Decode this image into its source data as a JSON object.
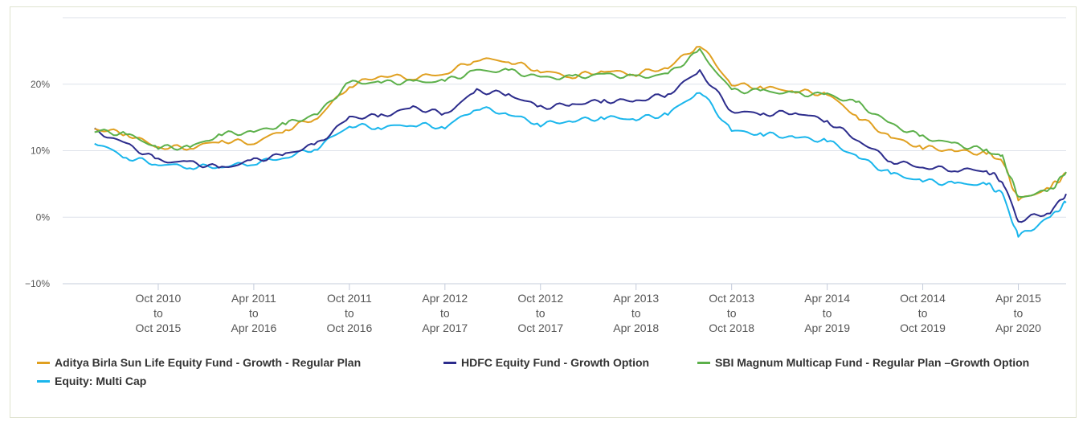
{
  "chart_data": {
    "type": "line",
    "yticks": [
      "−10%",
      "0%",
      "10%",
      "20%"
    ],
    "ylim": [
      -10,
      30
    ],
    "grid": true,
    "xticks": [
      [
        "Oct 2010",
        "to",
        "Oct 2015"
      ],
      [
        "Apr 2011",
        "to",
        "Apr 2016"
      ],
      [
        "Oct 2011",
        "to",
        "Oct 2016"
      ],
      [
        "Apr 2012",
        "to",
        "Apr 2017"
      ],
      [
        "Oct 2012",
        "to",
        "Oct 2017"
      ],
      [
        "Apr 2013",
        "to",
        "Apr 2018"
      ],
      [
        "Oct 2013",
        "to",
        "Oct 2018"
      ],
      [
        "Apr 2014",
        "to",
        "Apr 2019"
      ],
      [
        "Oct 2014",
        "to",
        "Oct 2019"
      ],
      [
        "Apr 2015",
        "to",
        "Apr 2020"
      ]
    ],
    "x_start": "Apr 2010 to Apr 2015",
    "legend_position": "bottom",
    "series": [
      {
        "name": "Aditya Birla Sun Life Equity Fund - Growth - Regular Plan",
        "color": "#e0a020",
        "x": [
          "2010-06",
          "2010-08",
          "2010-10",
          "2010-12",
          "2011-02",
          "2011-04",
          "2011-06",
          "2011-08",
          "2011-10",
          "2011-12",
          "2012-02",
          "2012-04",
          "2012-06",
          "2012-08",
          "2012-10",
          "2012-12",
          "2013-02",
          "2013-04",
          "2013-06",
          "2013-08",
          "2013-10",
          "2013-12",
          "2014-02",
          "2014-04",
          "2014-06",
          "2014-08",
          "2014-10",
          "2014-12",
          "2015-02",
          "2015-03",
          "2015-04",
          "2015-06",
          "2015-07"
        ],
        "y": [
          13.3,
          12.6,
          10.5,
          10.5,
          11.5,
          11.2,
          13.2,
          15.0,
          19.8,
          21.3,
          21.0,
          21.6,
          23.8,
          23.5,
          22.0,
          21.2,
          22.0,
          21.6,
          22.5,
          26.0,
          20.0,
          19.5,
          19.0,
          18.5,
          15.0,
          12.0,
          10.5,
          10.0,
          9.6,
          8.5,
          2.5,
          4.5,
          6.5
        ]
      },
      {
        "name": "HDFC Equity Fund - Growth Option",
        "color": "#2c2c8c",
        "x": [
          "2010-06",
          "2010-08",
          "2010-10",
          "2010-12",
          "2011-02",
          "2011-04",
          "2011-06",
          "2011-08",
          "2011-10",
          "2011-12",
          "2012-02",
          "2012-04",
          "2012-06",
          "2012-08",
          "2012-10",
          "2012-12",
          "2013-02",
          "2013-04",
          "2013-06",
          "2013-08",
          "2013-10",
          "2013-12",
          "2014-02",
          "2014-04",
          "2014-06",
          "2014-08",
          "2014-10",
          "2014-12",
          "2015-02",
          "2015-03",
          "2015-04",
          "2015-06",
          "2015-07"
        ],
        "y": [
          13.0,
          11.0,
          8.5,
          8.2,
          7.4,
          8.5,
          9.5,
          11.0,
          15.0,
          15.2,
          16.5,
          15.5,
          19.0,
          18.5,
          16.5,
          17.0,
          17.5,
          17.5,
          18.5,
          22.0,
          16.0,
          15.5,
          15.8,
          14.5,
          11.5,
          8.5,
          7.5,
          7.2,
          7.0,
          5.5,
          -0.5,
          0.8,
          3.5
        ]
      },
      {
        "name": "SBI Magnum Multicap Fund - Regular Plan –Growth Option",
        "color": "#5cb04a",
        "x": [
          "2010-06",
          "2010-08",
          "2010-10",
          "2010-12",
          "2011-02",
          "2011-04",
          "2011-06",
          "2011-08",
          "2011-10",
          "2011-12",
          "2012-02",
          "2012-04",
          "2012-06",
          "2012-08",
          "2012-10",
          "2012-12",
          "2013-02",
          "2013-04",
          "2013-06",
          "2013-08",
          "2013-10",
          "2013-12",
          "2014-02",
          "2014-04",
          "2014-06",
          "2014-08",
          "2014-10",
          "2014-12",
          "2015-02",
          "2015-03",
          "2015-04",
          "2015-06",
          "2015-07"
        ],
        "y": [
          13.0,
          12.5,
          10.5,
          10.5,
          12.5,
          12.8,
          14.0,
          15.5,
          20.2,
          20.3,
          20.3,
          20.5,
          22.0,
          22.0,
          21.0,
          21.0,
          21.5,
          21.0,
          21.5,
          25.0,
          19.0,
          19.0,
          18.5,
          18.5,
          17.0,
          14.0,
          12.0,
          11.0,
          10.0,
          9.0,
          3.0,
          4.0,
          6.8
        ]
      },
      {
        "name": "Equity: Multi Cap",
        "color": "#1ab6ec",
        "x": [
          "2010-06",
          "2010-08",
          "2010-10",
          "2010-12",
          "2011-02",
          "2011-04",
          "2011-06",
          "2011-08",
          "2011-10",
          "2011-12",
          "2012-02",
          "2012-04",
          "2012-06",
          "2012-08",
          "2012-10",
          "2012-12",
          "2013-02",
          "2013-04",
          "2013-06",
          "2013-08",
          "2013-10",
          "2013-12",
          "2014-02",
          "2014-04",
          "2014-06",
          "2014-08",
          "2014-10",
          "2014-12",
          "2015-02",
          "2015-03",
          "2015-04",
          "2015-06",
          "2015-07"
        ],
        "y": [
          11.3,
          9.0,
          8.0,
          7.6,
          7.6,
          8.2,
          9.0,
          10.5,
          13.8,
          13.5,
          14.0,
          13.5,
          16.5,
          15.5,
          14.0,
          14.5,
          15.0,
          14.8,
          15.5,
          19.0,
          13.0,
          12.5,
          12.0,
          11.5,
          9.0,
          6.5,
          5.5,
          5.0,
          5.0,
          3.5,
          -3.0,
          0.0,
          2.2
        ]
      }
    ]
  }
}
